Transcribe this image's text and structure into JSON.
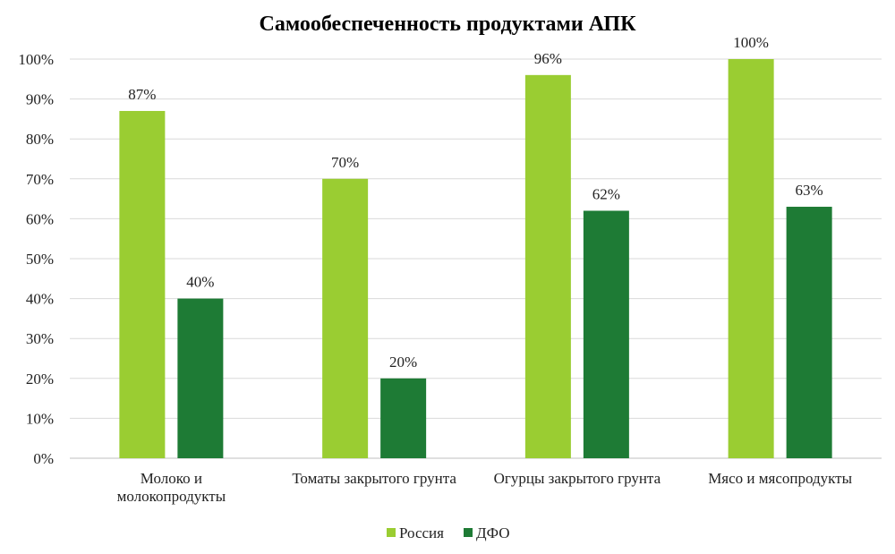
{
  "chart_data": {
    "type": "bar",
    "title": "Самообеспеченность продуктами АПК",
    "categories": [
      [
        "Молоко и",
        "молокопродукты"
      ],
      [
        "Томаты закрытого грунта"
      ],
      [
        "Огурцы закрытого грунта"
      ],
      [
        "Мясо и мясопродукты"
      ]
    ],
    "series": [
      {
        "name": "Россия",
        "color": "#9ACD32",
        "values": [
          87,
          70,
          96,
          100
        ],
        "labels": [
          "87%",
          "70%",
          "96%",
          "100%"
        ]
      },
      {
        "name": "ДФО",
        "color": "#1E7B35",
        "values": [
          40,
          20,
          62,
          63
        ],
        "labels": [
          "40%",
          "20%",
          "62%",
          "63%"
        ]
      }
    ],
    "ylim": [
      0,
      100
    ],
    "yticks": [
      "0%",
      "10%",
      "20%",
      "30%",
      "40%",
      "50%",
      "60%",
      "70%",
      "80%",
      "90%",
      "100%"
    ],
    "grid": true,
    "legend": "bottom-center"
  }
}
